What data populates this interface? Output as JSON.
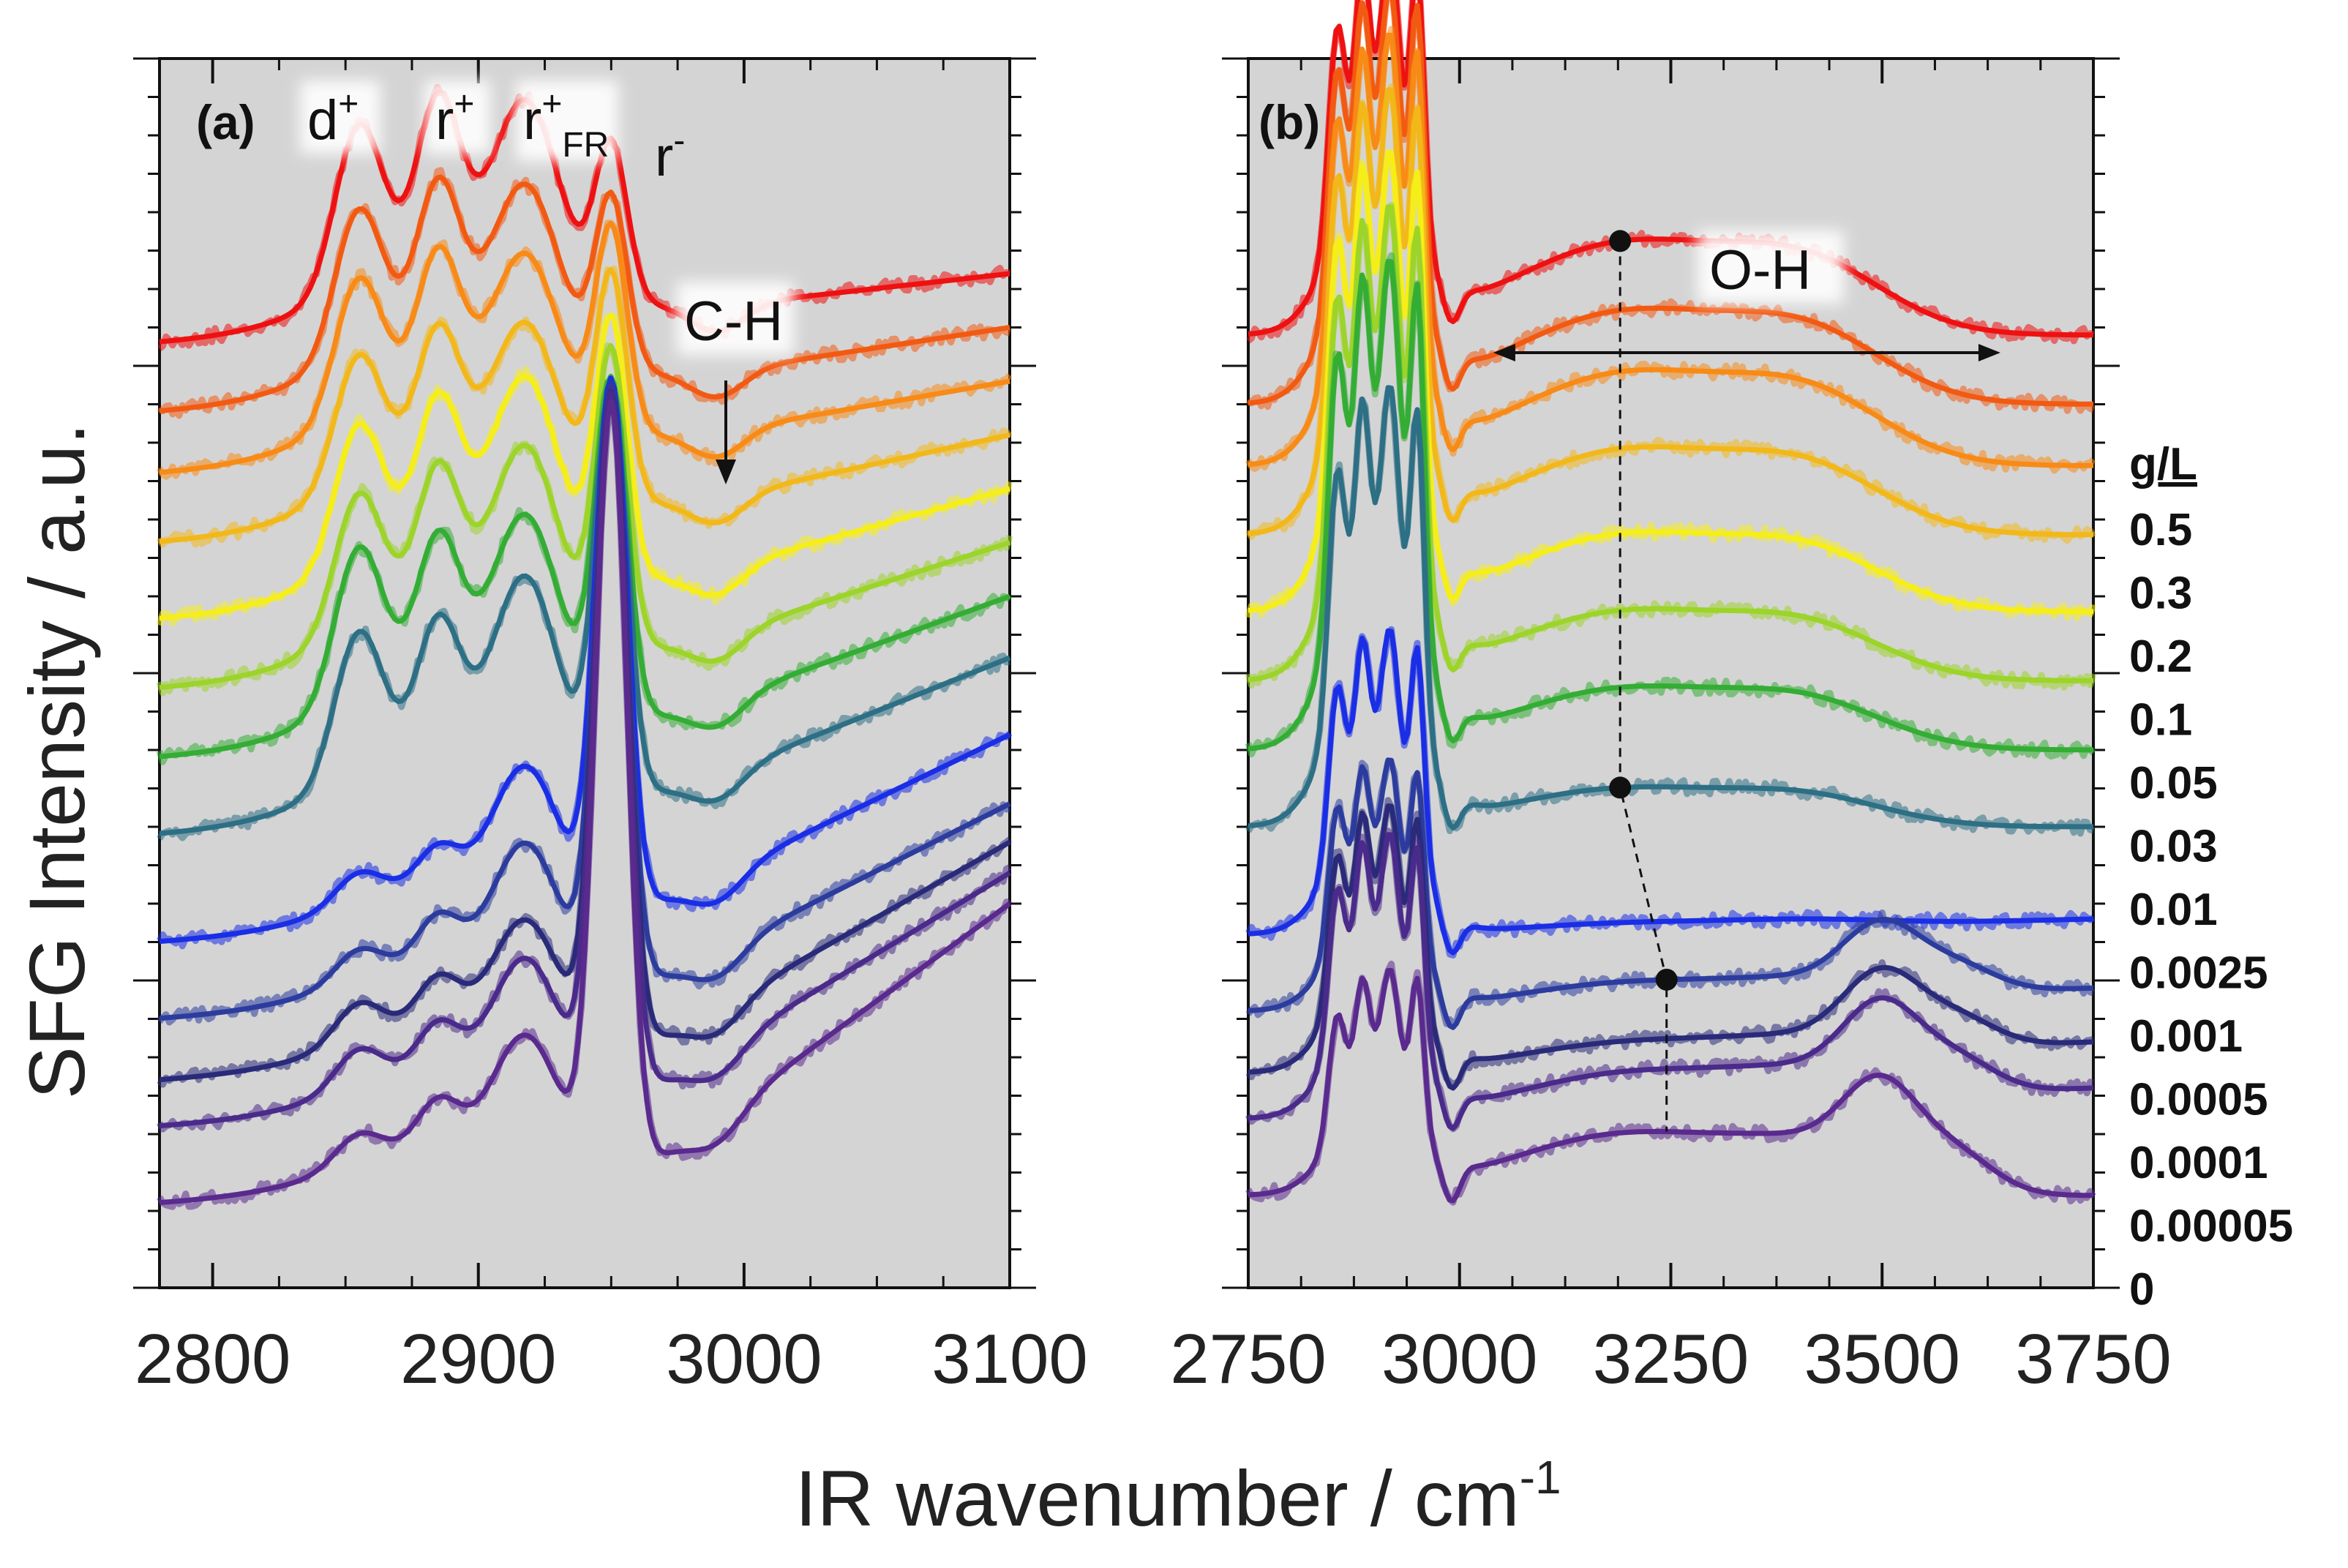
{
  "figure": {
    "ylabel": "SFG Intensity / a.u.",
    "xlabel_main": "IR wavenumber / cm",
    "xlabel_sup": "-1",
    "legend_title": "g/L",
    "highlight_color": "#0000dd"
  },
  "concentrations": [
    {
      "label": "0.5",
      "color": "#ee1111"
    },
    {
      "label": "0.3",
      "color": "#f25a12"
    },
    {
      "label": "0.2",
      "color": "#f88a16"
    },
    {
      "label": "0.1",
      "color": "#f2b81a"
    },
    {
      "label": "0.05",
      "color": "#f6ee18"
    },
    {
      "label": "0.03",
      "color": "#9cd42a"
    },
    {
      "label": "0.01",
      "color": "#34ad34"
    },
    {
      "label": "0.0025",
      "color": "#2d6f85"
    },
    {
      "label": "0.001",
      "color": "#1a2ee6"
    },
    {
      "label": "0.0005",
      "color": "#2c3c9e"
    },
    {
      "label": "0.0001",
      "color": "#2a2a7a"
    },
    {
      "label": "0.00005",
      "color": "#4a2a8a"
    },
    {
      "label": "0",
      "color": "#5a2a8e"
    }
  ],
  "chart_data": [
    {
      "type": "line",
      "panel": "(a)",
      "xlim": [
        2780,
        3100
      ],
      "xticks": [
        2800,
        2900,
        3000,
        3100
      ],
      "xtick_labels": [
        "2800",
        "2900",
        "3000",
        "3100"
      ],
      "ylabel": "SFG Intensity / a.u.",
      "xlabel": "IR wavenumber / cm-1",
      "annotations": [
        {
          "base": "d",
          "sup": "+",
          "sub": ""
        },
        {
          "base": "r",
          "sup": "+",
          "sub": ""
        },
        {
          "base": "r",
          "sup": "+",
          "sub": "FR"
        },
        {
          "base": "r",
          "sup": "-",
          "sub": ""
        },
        {
          "base": "C-H",
          "sup": "",
          "sub": ""
        }
      ],
      "arrow_at_x": 2990,
      "peak_positions": {
        "d_plus": 2855,
        "r_plus": 2885,
        "r_plus_FR": 2918,
        "r_minus": 2950,
        "dip": 2990
      },
      "series_offsets": [
        12.4,
        11.5,
        10.7,
        9.8,
        8.8,
        7.9,
        7.0,
        6.0,
        4.6,
        3.6,
        2.8,
        2.2,
        1.2
      ],
      "series_peak_heights": {
        "d_plus": [
          2.1,
          1.9,
          1.8,
          1.7,
          1.8,
          1.8,
          2.0,
          1.9,
          0.4,
          0.4,
          0.5,
          0.5,
          0.4
        ],
        "r_plus": [
          2.1,
          1.9,
          1.8,
          1.7,
          1.8,
          1.8,
          1.8,
          1.7,
          0.5,
          0.6,
          0.6,
          0.6,
          0.6
        ],
        "r_plus_FR": [
          2.2,
          2.0,
          1.9,
          1.9,
          2.2,
          2.2,
          2.2,
          2.4,
          1.6,
          1.6,
          1.4,
          1.5,
          1.5
        ],
        "r_minus": [
          2.0,
          2.2,
          2.6,
          2.9,
          3.3,
          3.8,
          4.3,
          5.2,
          6.8,
          7.7,
          8.4,
          9.0,
          9.9
        ]
      },
      "baseline_low_end": [
        12.3,
        11.4,
        10.6,
        9.7,
        8.7,
        7.8,
        6.9,
        5.9,
        4.5,
        3.5,
        2.7,
        2.1,
        1.1
      ],
      "baseline_high_end": [
        13.2,
        12.5,
        11.8,
        11.1,
        10.4,
        9.7,
        9.0,
        8.2,
        7.2,
        6.3,
        5.8,
        5.4,
        5.0
      ]
    },
    {
      "type": "line",
      "panel": "(b)",
      "xlim": [
        2750,
        3750
      ],
      "xticks": [
        2750,
        3000,
        3250,
        3500,
        3750
      ],
      "xtick_labels": [
        "2750",
        "3000",
        "3250",
        "3500",
        "3750"
      ],
      "xlabel": "IR wavenumber / cm-1",
      "annotations": [
        {
          "base": "O-H",
          "sup": "",
          "sub": ""
        }
      ],
      "oh_range": [
        3040,
        3640
      ],
      "marker_points": [
        {
          "x": 3190,
          "series": "0.5"
        },
        {
          "x": 3190,
          "series": "0.0025"
        },
        {
          "x": 3245,
          "series": "0.0005"
        }
      ],
      "dashed_guide": [
        {
          "x": 3190,
          "series": "0.5"
        },
        {
          "x": 3190,
          "series": "0.0025"
        },
        {
          "x": 3245,
          "series": "0.0005"
        },
        {
          "x": 3245,
          "series": "0"
        }
      ],
      "series_offsets": [
        12.4,
        11.5,
        10.7,
        9.8,
        8.8,
        7.9,
        7.0,
        6.0,
        4.6,
        3.6,
        2.8,
        2.2,
        1.2
      ],
      "ch_peak_height": [
        4.8,
        5.2,
        5.4,
        5.6,
        5.8,
        6.0,
        6.2,
        5.6,
        3.9,
        3.2,
        3.4,
        3.6,
        2.8
      ],
      "oh_broad_height": [
        1.2,
        1.2,
        1.2,
        1.1,
        1.0,
        0.9,
        0.8,
        0.5,
        0.1,
        0.3,
        0.3,
        0.5,
        0.8
      ],
      "oh_free_height": [
        0.0,
        0.0,
        0.0,
        0.0,
        0.0,
        0.0,
        0.0,
        0.0,
        0.0,
        0.8,
        0.9,
        1.0,
        1.1
      ],
      "right_end": [
        12.4,
        11.5,
        10.7,
        9.8,
        8.8,
        7.9,
        7.0,
        6.0,
        4.8,
        3.9,
        3.2,
        2.6,
        1.2
      ]
    }
  ]
}
